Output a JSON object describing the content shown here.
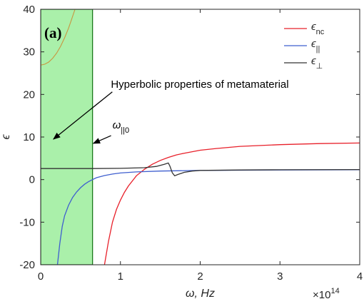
{
  "chart_data": {
    "type": "line",
    "panel_label": "(a)",
    "xlabel": "ω, Hz",
    "ylabel": "ϵ",
    "x_exponent": "×10",
    "x_exponent_power": "14",
    "xlim": [
      0,
      4
    ],
    "ylim": [
      -20,
      40
    ],
    "xticks": [
      0,
      1,
      2,
      3,
      4
    ],
    "yticks": [
      -20,
      -10,
      0,
      10,
      20,
      30,
      40
    ],
    "grid": false,
    "legend_position": "top-right",
    "colors": {
      "shade": "#aaf0aa",
      "shade_edge": "#1a7a1a",
      "nc": "#e8202a",
      "par": "#3f5fcf",
      "perp": "#333333",
      "perp_shade_segment": "#c89640"
    },
    "shaded_region": {
      "x_start": 0,
      "x_end": 0.65
    },
    "series": [
      {
        "key": "nc",
        "name": "ϵ",
        "subscript": "nc",
        "points": [
          [
            0.8,
            -20
          ],
          [
            0.85,
            -14.5
          ],
          [
            0.9,
            -10
          ],
          [
            0.95,
            -7
          ],
          [
            1.0,
            -4.8
          ],
          [
            1.05,
            -3
          ],
          [
            1.1,
            -1.5
          ],
          [
            1.15,
            -0.3
          ],
          [
            1.2,
            0.9
          ],
          [
            1.3,
            2.4
          ],
          [
            1.4,
            3.6
          ],
          [
            1.5,
            4.5
          ],
          [
            1.6,
            5.2
          ],
          [
            1.7,
            5.8
          ],
          [
            1.8,
            6.2
          ],
          [
            2.0,
            6.9
          ],
          [
            2.2,
            7.3
          ],
          [
            2.5,
            7.8
          ],
          [
            3.0,
            8.2
          ],
          [
            3.5,
            8.45
          ],
          [
            4.0,
            8.6
          ]
        ]
      },
      {
        "key": "par",
        "name": "ϵ",
        "subscript": "||",
        "points": [
          [
            0.21,
            -20
          ],
          [
            0.24,
            -15
          ],
          [
            0.27,
            -11
          ],
          [
            0.3,
            -8.5
          ],
          [
            0.35,
            -6
          ],
          [
            0.4,
            -4.2
          ],
          [
            0.45,
            -2.9
          ],
          [
            0.5,
            -1.9
          ],
          [
            0.55,
            -1.1
          ],
          [
            0.6,
            -0.5
          ],
          [
            0.65,
            0
          ],
          [
            0.7,
            0.45
          ],
          [
            0.8,
            0.95
          ],
          [
            0.9,
            1.3
          ],
          [
            1.0,
            1.55
          ],
          [
            1.2,
            1.8
          ],
          [
            1.5,
            2.0
          ],
          [
            2.0,
            2.15
          ],
          [
            3.0,
            2.25
          ],
          [
            4.0,
            2.3
          ]
        ]
      },
      {
        "key": "perp",
        "name": "ϵ",
        "subscript": "⊥",
        "points": [
          [
            0,
            2.6
          ],
          [
            0.65,
            2.6
          ],
          [
            1.0,
            2.65
          ],
          [
            1.3,
            2.8
          ],
          [
            1.45,
            3.1
          ],
          [
            1.55,
            3.6
          ],
          [
            1.6,
            3.9
          ],
          [
            1.62,
            3.2
          ],
          [
            1.65,
            1.6
          ],
          [
            1.68,
            0.9
          ],
          [
            1.72,
            1.2
          ],
          [
            1.8,
            1.7
          ],
          [
            1.9,
            2.0
          ],
          [
            2.0,
            2.15
          ],
          [
            2.5,
            2.25
          ],
          [
            3.0,
            2.3
          ],
          [
            4.0,
            2.35
          ]
        ]
      },
      {
        "key": "perp_shade_segment",
        "name": "",
        "points": [
          [
            0,
            26.9
          ],
          [
            0.05,
            27.1
          ],
          [
            0.1,
            27.6
          ],
          [
            0.15,
            28.5
          ],
          [
            0.2,
            29.7
          ],
          [
            0.25,
            31.3
          ],
          [
            0.3,
            33.3
          ],
          [
            0.35,
            35.6
          ],
          [
            0.4,
            38.3
          ],
          [
            0.43,
            40
          ]
        ]
      }
    ],
    "annotations": {
      "hyperbolic": {
        "text": "Hyperbolic properties of metamaterial",
        "x": 0.88,
        "y": 21.6,
        "arrow_to": [
          0.16,
          9.5
        ]
      },
      "omega": {
        "text": "ω",
        "subscript": "||0",
        "x": 0.9,
        "y": 12.0,
        "arrow_to": [
          0.66,
          8.5
        ]
      }
    }
  }
}
